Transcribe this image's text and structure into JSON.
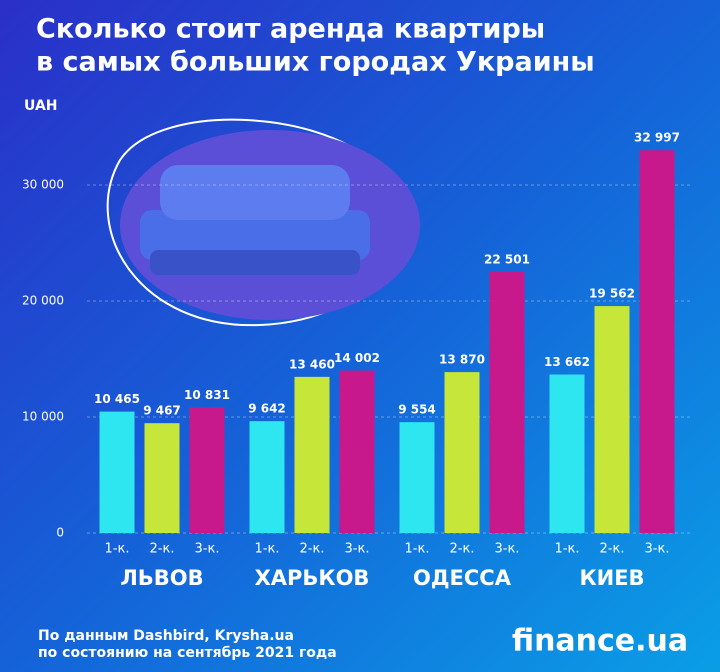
{
  "chart_data": {
    "type": "bar",
    "title": [
      "Сколько стоит аренда квартиры",
      "в самых больших городах Украины"
    ],
    "y_label": "UAH",
    "categories": [
      "ЛЬВОВ",
      "ХАРЬКОВ",
      "ОДЕССА",
      "КИЕВ"
    ],
    "series": [
      {
        "name": "1-к.",
        "color": "#2de6f0",
        "values": [
          10465,
          9642,
          9554,
          13662
        ],
        "value_labels": [
          "10 465",
          "9 642",
          "9 554",
          "13 662"
        ]
      },
      {
        "name": "2-к.",
        "color": "#c6e63a",
        "values": [
          9467,
          13460,
          13870,
          19562
        ],
        "value_labels": [
          "9 467",
          "13 460",
          "13 870",
          "19 562"
        ]
      },
      {
        "name": "3-к.",
        "color": "#c8198c",
        "values": [
          10831,
          14002,
          22501,
          32997
        ],
        "value_labels": [
          "10 831",
          "14 002",
          "22 501",
          "32 997"
        ]
      }
    ],
    "ylim": [
      0,
      35000
    ],
    "yticks": [
      0,
      {
        "value": 10000,
        "label": "10 000"
      },
      {
        "value": 20000,
        "label": "20 000"
      },
      {
        "value": 30000,
        "label": "30 000"
      }
    ],
    "grid": true,
    "source": [
      "По данным Dashbird, Krysha.ua",
      "по состоянию на сентябрь 2021 года"
    ],
    "logo": "finance.ua"
  }
}
